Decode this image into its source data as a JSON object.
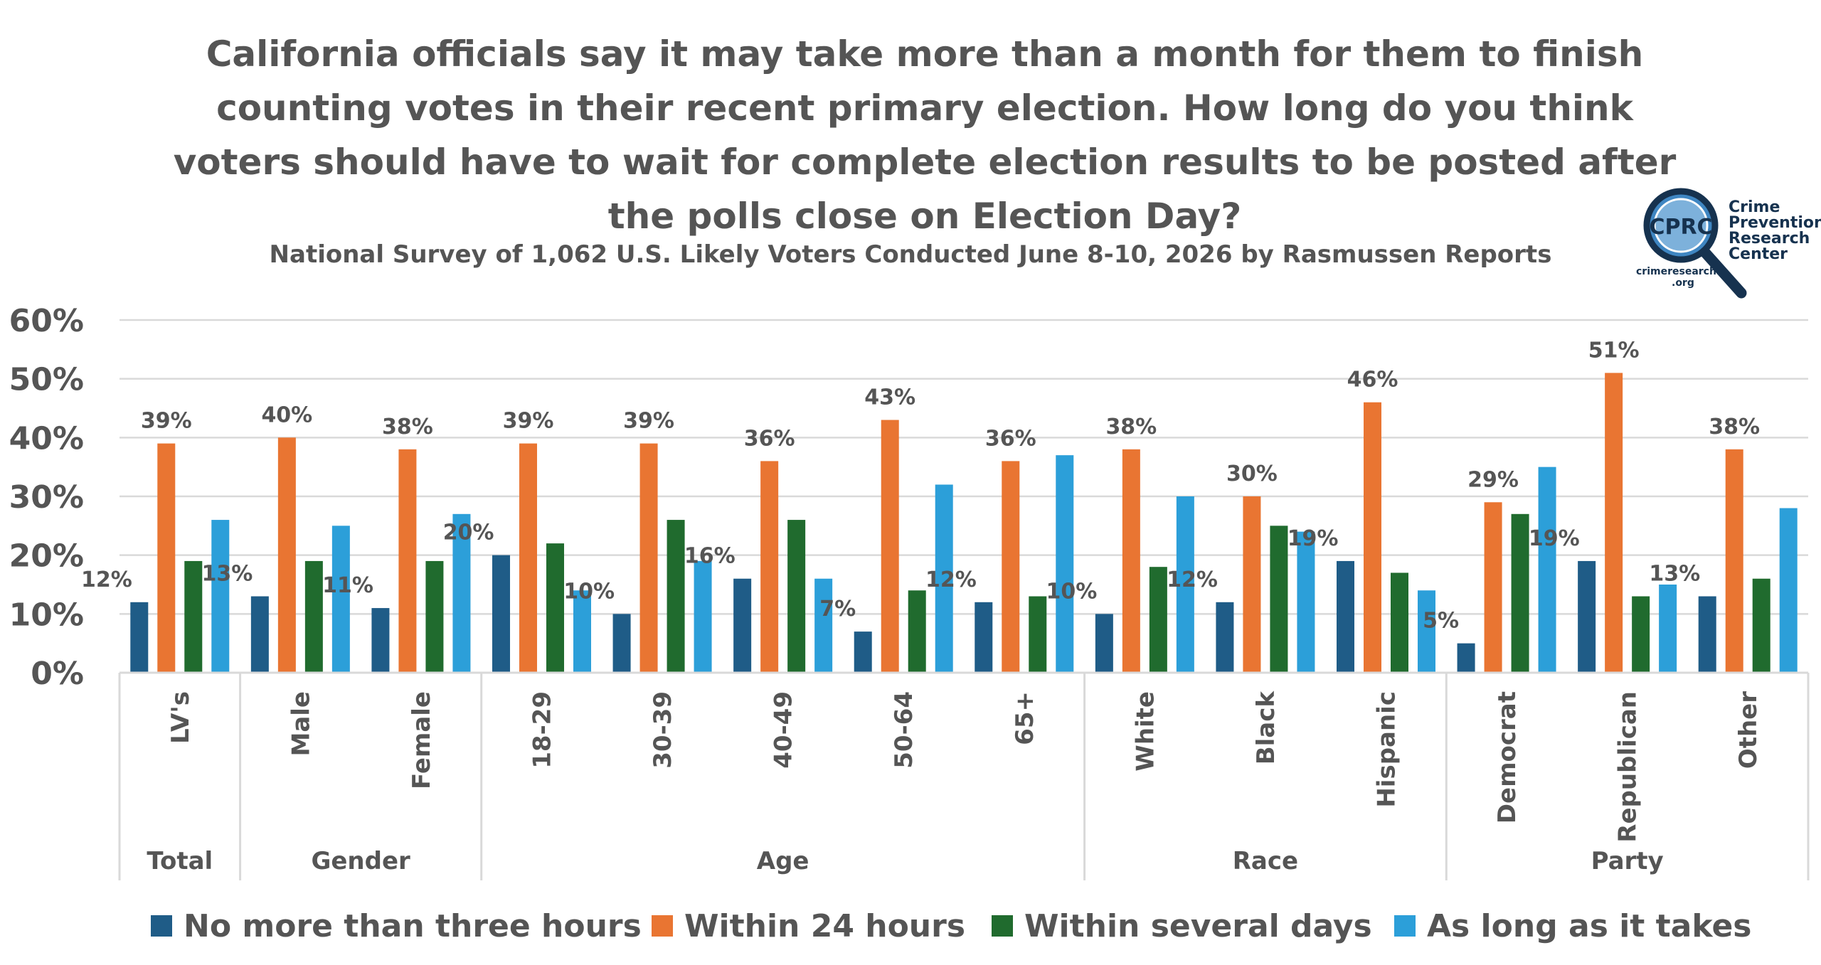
{
  "title": "California officials say it may take more than a month for them to finish counting votes in their recent primary election. How long do you think voters should have to wait for complete election results to be posted after the polls close on Election Day?",
  "subtitle": "National Survey of 1,062 U.S. Likely Voters Conducted June 8-10, 2026 by Rasmussen Reports",
  "logo": {
    "badge": "CPRC",
    "name_lines": [
      "Crime",
      "Prevention",
      "Research",
      "Center"
    ],
    "site_lines": [
      "crimeresearch",
      ".org"
    ]
  },
  "colors": {
    "no_more_than_three_hours": "#1f5c87",
    "within_24_hours": "#e97532",
    "within_several_days": "#206b2e",
    "as_long_as_it_takes": "#2c9fd9",
    "text": "#555555",
    "grid": "#d9d9d9"
  },
  "chart_data": {
    "type": "bar",
    "title": "California officials say it may take more than a month for them to finish counting votes in their recent primary election. How long do you think voters should have to wait for complete election results to be posted after the polls close on Election Day?",
    "subtitle": "National Survey of 1,062 U.S. Likely Voters Conducted June 8-10, 2026 by Rasmussen Reports",
    "categories": [
      "LV's",
      "Male",
      "Female",
      "18-29",
      "30-39",
      "40-49",
      "50-64",
      "65+",
      "White",
      "Black",
      "Hispanic",
      "Democrat",
      "Republican",
      "Other"
    ],
    "groups": [
      {
        "name": "Total",
        "categories": [
          "LV's"
        ]
      },
      {
        "name": "Gender",
        "categories": [
          "Male",
          "Female"
        ]
      },
      {
        "name": "Age",
        "categories": [
          "18-29",
          "30-39",
          "40-49",
          "50-64",
          "65+"
        ]
      },
      {
        "name": "Race",
        "categories": [
          "White",
          "Black",
          "Hispanic"
        ]
      },
      {
        "name": "Party",
        "categories": [
          "Democrat",
          "Republican",
          "Other"
        ]
      }
    ],
    "series": [
      {
        "name": "No more than three hours",
        "values": [
          12,
          13,
          11,
          20,
          10,
          16,
          7,
          12,
          10,
          12,
          19,
          5,
          19,
          13
        ]
      },
      {
        "name": "Within 24 hours",
        "values": [
          39,
          40,
          38,
          39,
          39,
          36,
          43,
          36,
          38,
          30,
          46,
          29,
          51,
          38
        ]
      },
      {
        "name": "Within several days",
        "values": [
          19,
          19,
          19,
          22,
          26,
          26,
          14,
          13,
          18,
          25,
          17,
          27,
          13,
          16
        ]
      },
      {
        "name": "As long as it takes",
        "values": [
          26,
          25,
          27,
          14,
          19,
          16,
          32,
          37,
          30,
          24,
          14,
          35,
          15,
          28
        ]
      }
    ],
    "data_labels": {
      "No more than three hours": [
        "12%",
        "13%",
        "11%",
        "20%",
        "10%",
        "16%",
        "7%",
        "12%",
        "10%",
        "12%",
        "19%",
        "5%",
        "19%",
        "13%"
      ],
      "Within 24 hours": [
        "39%",
        "40%",
        "38%",
        "39%",
        "39%",
        "36%",
        "43%",
        "36%",
        "38%",
        "30%",
        "46%",
        "29%",
        "51%",
        "38%"
      ]
    },
    "y_ticks": [
      "0%",
      "10%",
      "20%",
      "30%",
      "40%",
      "50%",
      "60%"
    ],
    "ylim": [
      0,
      60
    ],
    "grid": true,
    "legend": "bottom"
  }
}
